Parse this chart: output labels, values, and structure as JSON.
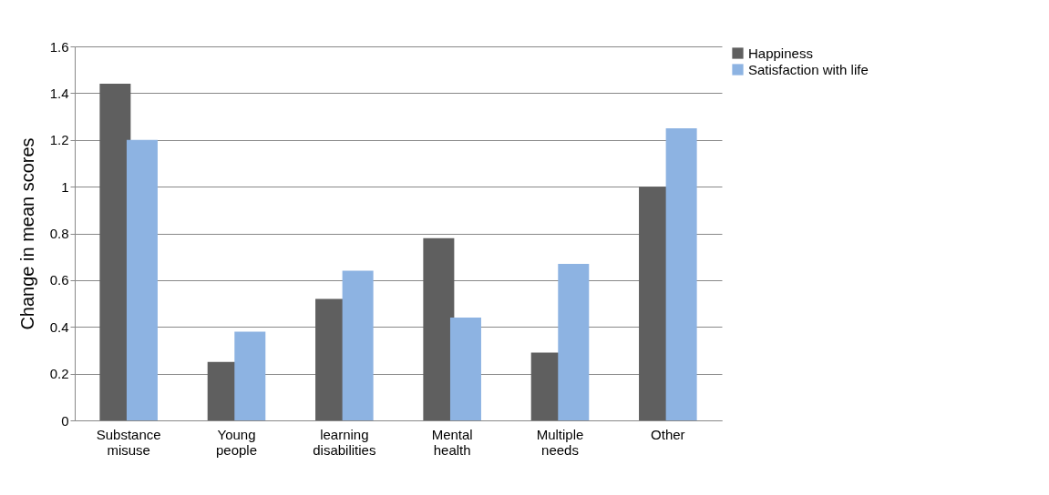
{
  "chart_data": {
    "type": "bar",
    "ylabel": "Change in mean scores",
    "categories": [
      "Substance misuse",
      "Young people",
      "learning disabilities",
      "Mental health",
      "Multiple needs",
      "Other"
    ],
    "series": [
      {
        "name": "Happiness",
        "color": "#5f5f5f",
        "values": [
          1.44,
          0.25,
          0.52,
          0.78,
          0.29,
          1.0
        ]
      },
      {
        "name": "Satisfaction with life",
        "color": "#8db3e2",
        "values": [
          1.2,
          0.38,
          0.64,
          0.44,
          0.67,
          1.25
        ]
      }
    ],
    "ylim": [
      0,
      1.6
    ],
    "yticks": [
      0,
      0.2,
      0.4,
      0.6,
      0.8,
      1,
      1.2,
      1.4,
      1.6
    ],
    "grid": "y",
    "legend": "right"
  }
}
